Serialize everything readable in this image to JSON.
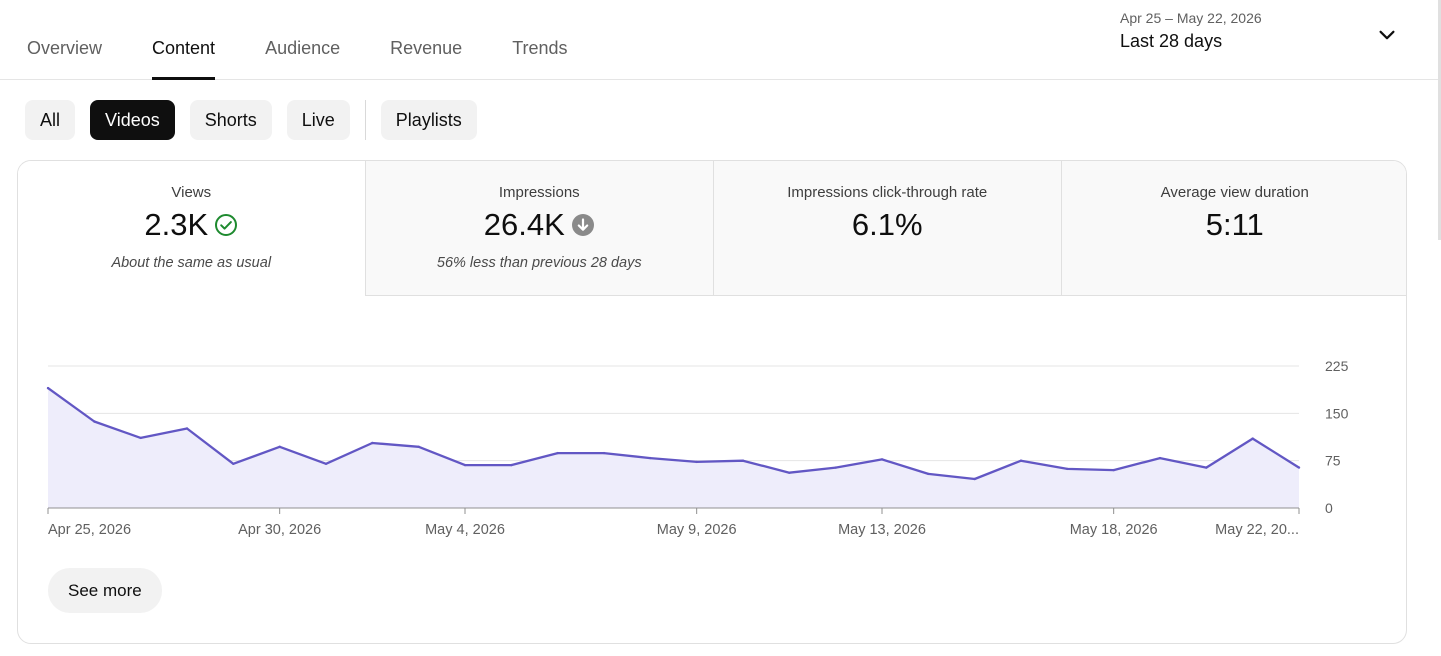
{
  "tabs": [
    {
      "label": "Overview",
      "active": false
    },
    {
      "label": "Content",
      "active": true
    },
    {
      "label": "Audience",
      "active": false
    },
    {
      "label": "Revenue",
      "active": false
    },
    {
      "label": "Trends",
      "active": false
    }
  ],
  "date_picker": {
    "range": "Apr 25 – May 22, 2026",
    "label": "Last 28 days",
    "icon": "chevron-down-icon"
  },
  "chips": [
    {
      "label": "All",
      "active": false
    },
    {
      "label": "Videos",
      "active": true
    },
    {
      "label": "Shorts",
      "active": false
    },
    {
      "label": "Live",
      "active": false
    },
    {
      "label": "Playlists",
      "active": false
    }
  ],
  "metrics": [
    {
      "title": "Views",
      "value": "2.3K",
      "note": "About the same as usual",
      "icon": "check-circle-icon",
      "active": true
    },
    {
      "title": "Impressions",
      "value": "26.4K",
      "note": "56% less than previous 28 days",
      "icon": "arrow-down-circle-icon",
      "active": false
    },
    {
      "title": "Impressions click-through rate",
      "value": "6.1%",
      "note": "",
      "icon": "",
      "active": false
    },
    {
      "title": "Average view duration",
      "value": "5:11",
      "note": "",
      "icon": "",
      "active": false
    }
  ],
  "colors": {
    "line": "#6257c4",
    "area": "#eeedfb",
    "check": "#1e8a2f",
    "arrow_down": "#8a8a8a",
    "grid": "#e5e5e5"
  },
  "chart_data": {
    "type": "area",
    "x": [
      "Apr 25, 2026",
      "Apr 26, 2026",
      "Apr 27, 2026",
      "Apr 28, 2026",
      "Apr 29, 2026",
      "Apr 30, 2026",
      "May 1, 2026",
      "May 2, 2026",
      "May 3, 2026",
      "May 4, 2026",
      "May 5, 2026",
      "May 6, 2026",
      "May 7, 2026",
      "May 8, 2026",
      "May 9, 2026",
      "May 10, 2026",
      "May 11, 2026",
      "May 12, 2026",
      "May 13, 2026",
      "May 14, 2026",
      "May 15, 2026",
      "May 16, 2026",
      "May 17, 2026",
      "May 18, 2026",
      "May 19, 2026",
      "May 20, 2026",
      "May 21, 2026",
      "May 22, 2026"
    ],
    "series": [
      {
        "values": [
          190,
          137,
          111,
          126,
          70,
          97,
          70,
          103,
          97,
          68,
          68,
          87,
          87,
          79,
          73,
          75,
          56,
          64,
          77,
          54,
          46,
          75,
          62,
          60,
          79,
          64,
          110,
          64
        ]
      }
    ],
    "xticks": [
      "Apr 25, 2026",
      "Apr 30, 2026",
      "May 4, 2026",
      "May 9, 2026",
      "May 13, 2026",
      "May 18, 2026",
      "May 22, 20..."
    ],
    "xtick_index": [
      0,
      5,
      9,
      14,
      18,
      23,
      27
    ],
    "yticks": [
      "225",
      "150",
      "75",
      "0"
    ],
    "ylim": [
      0,
      225
    ],
    "grid": true
  },
  "see_more_label": "See more"
}
